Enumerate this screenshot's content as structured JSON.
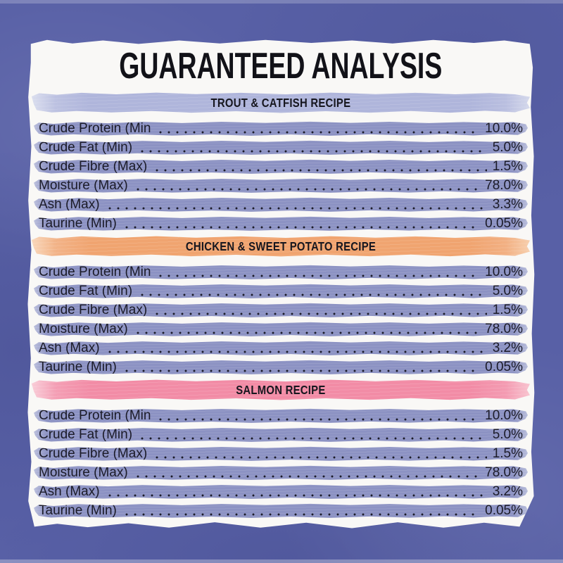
{
  "title": "GUARANTEED ANALYSIS",
  "colors": {
    "background": "#5860A6",
    "paper": "#F9F8F6",
    "row_band": "#8C92C3",
    "text": "#17171F",
    "trout_band": "#AFB5DB",
    "chicken_band": "#F0A470",
    "salmon_band": "#F28CA6"
  },
  "sections": [
    {
      "title": "TROUT & CATFISH RECIPE",
      "band_color": "#AFB5DB",
      "rows": [
        {
          "label": "Crude Protein (Min",
          "value": "10.0%"
        },
        {
          "label": "Crude Fat (Min)",
          "value": "5.0%"
        },
        {
          "label": "Crude Fibre (Max)",
          "value": "1.5%"
        },
        {
          "label": "Moisture (Max)",
          "value": "78.0%"
        },
        {
          "label": "Ash (Max)",
          "value": "3.3%"
        },
        {
          "label": "Taurine (Min)",
          "value": "0.05%"
        }
      ]
    },
    {
      "title": "CHICKEN & SWEET POTATO RECIPE",
      "band_color": "#F0A470",
      "rows": [
        {
          "label": "Crude Protein (Min",
          "value": "10.0%"
        },
        {
          "label": "Crude Fat (Min)",
          "value": "5.0%"
        },
        {
          "label": "Crude Fibre (Max)",
          "value": "1.5%"
        },
        {
          "label": "Moisture (Max)",
          "value": "78.0%"
        },
        {
          "label": "Ash (Max)",
          "value": "3.2%"
        },
        {
          "label": "Taurine (Min)",
          "value": "0.05%"
        }
      ]
    },
    {
      "title": "SALMON RECIPE",
      "band_color": "#F28CA6",
      "rows": [
        {
          "label": "Crude Protein (Min",
          "value": "10.0%"
        },
        {
          "label": "Crude Fat (Min)",
          "value": "5.0%"
        },
        {
          "label": "Crude Fibre (Max)",
          "value": "1.5%"
        },
        {
          "label": "Moisture (Max)",
          "value": "78.0%"
        },
        {
          "label": "Ash (Max)",
          "value": "3.2%"
        },
        {
          "label": "Taurine (Min)",
          "value": "0.05%"
        }
      ]
    }
  ]
}
